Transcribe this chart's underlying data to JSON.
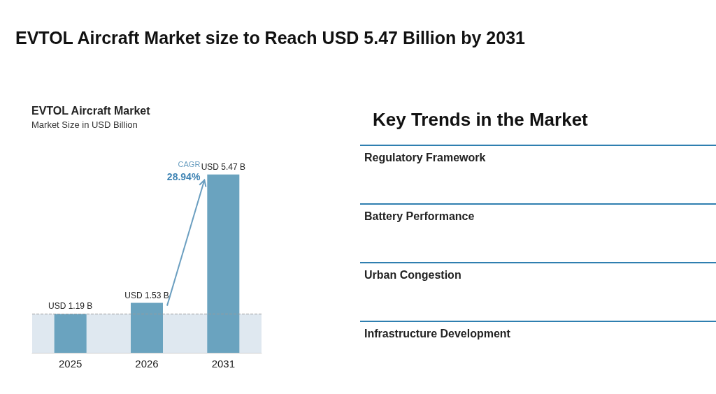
{
  "chart_data": [
    {
      "type": "other",
      "title": "EVTOL Aircraft Market size to Reach USD 5.47 Billion by 2031"
    },
    {
      "type": "bar",
      "title": "EVTOL Aircraft Market",
      "subtitle": "Market Size in USD Billion",
      "categories": [
        "2025",
        "2026",
        "2031"
      ],
      "values": [
        1.19,
        1.53,
        5.47
      ],
      "value_labels": [
        "USD 1.19 B",
        "USD 1.53 B",
        "USD 5.47 B"
      ],
      "color": "#6aa3bf",
      "annotations": [
        "CAGR",
        "28.94%"
      ],
      "ref_lines": [
        {
          "axis": "y",
          "value": 1.19,
          "line_style": "dashed",
          "color": "#9a9a9a"
        }
      ],
      "bands": [
        {
          "axis": "y",
          "from": 0,
          "to": 1.19,
          "color": "#dfe8f0"
        }
      ]
    },
    {
      "type": "other",
      "title": "Key Trends in the Market",
      "annotations": [
        "Regulatory Framework",
        "Battery Performance",
        "Urban Congestion",
        "Infrastructure Development"
      ]
    }
  ]
}
